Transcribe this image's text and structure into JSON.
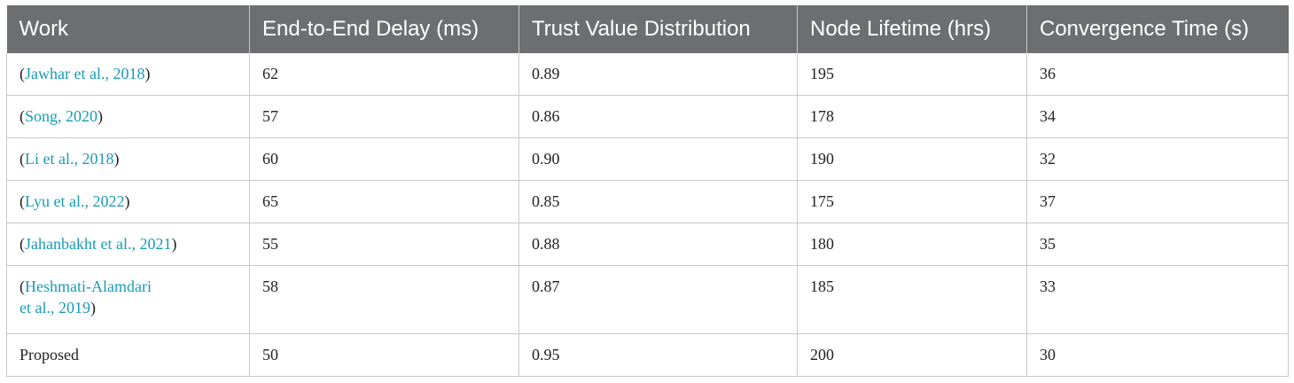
{
  "table": {
    "headers": [
      "Work",
      "End-to-End Delay (ms)",
      "Trust Value Distribution",
      "Node Lifetime (hrs)",
      "Convergence Time (s)"
    ],
    "rows": [
      {
        "open": "(",
        "work": "Jawhar et al., 2018",
        "close": ")",
        "delay": "62",
        "trust": "0.89",
        "lifetime": "195",
        "convergence": "36"
      },
      {
        "open": "(",
        "work": "Song, 2020",
        "close": ")",
        "delay": "57",
        "trust": "0.86",
        "lifetime": "178",
        "convergence": "34"
      },
      {
        "open": "(",
        "work": "Li et al., 2018",
        "close": ")",
        "delay": "60",
        "trust": "0.90",
        "lifetime": "190",
        "convergence": "32"
      },
      {
        "open": "(",
        "work": "Lyu et al., 2022",
        "close": ")",
        "delay": "65",
        "trust": "0.85",
        "lifetime": "175",
        "convergence": "37"
      },
      {
        "open": "(",
        "work": "Jahanbakht et al., 2021",
        "close": ")",
        "delay": "55",
        "trust": "0.88",
        "lifetime": "180",
        "convergence": "35"
      },
      {
        "open": "(",
        "work_line1": "Heshmati-Alamdari",
        "work_line2": "et al., 2019",
        "close": ")",
        "delay": "58",
        "trust": "0.87",
        "lifetime": "185",
        "convergence": "33"
      },
      {
        "work_plain": "Proposed",
        "delay": "50",
        "trust": "0.95",
        "lifetime": "200",
        "convergence": "30"
      }
    ]
  }
}
